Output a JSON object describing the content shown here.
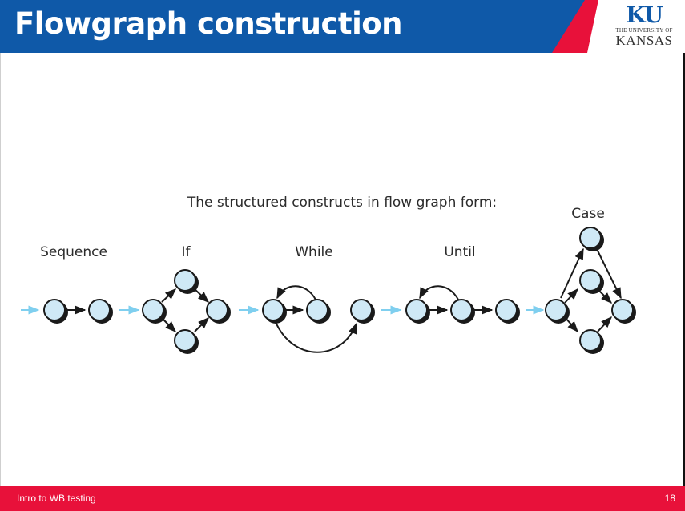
{
  "slide": {
    "title": "Flowgraph construction",
    "page_number": "18",
    "footer": "Intro to WB testing"
  },
  "logo": {
    "mark": "KU",
    "line1": "THE UNIVERSITY OF",
    "line2": "KANSAS"
  },
  "figure": {
    "caption": "The structured constructs in flow graph form:",
    "constructs": [
      {
        "name": "Sequence"
      },
      {
        "name": "If"
      },
      {
        "name": "While"
      },
      {
        "name": "Until"
      },
      {
        "name": "Case"
      }
    ]
  },
  "colors": {
    "header_blue": "#0f59a8",
    "accent_red": "#e8113a",
    "node_fill": "#cfe9f6",
    "entry_arrow": "#7fcfef"
  }
}
